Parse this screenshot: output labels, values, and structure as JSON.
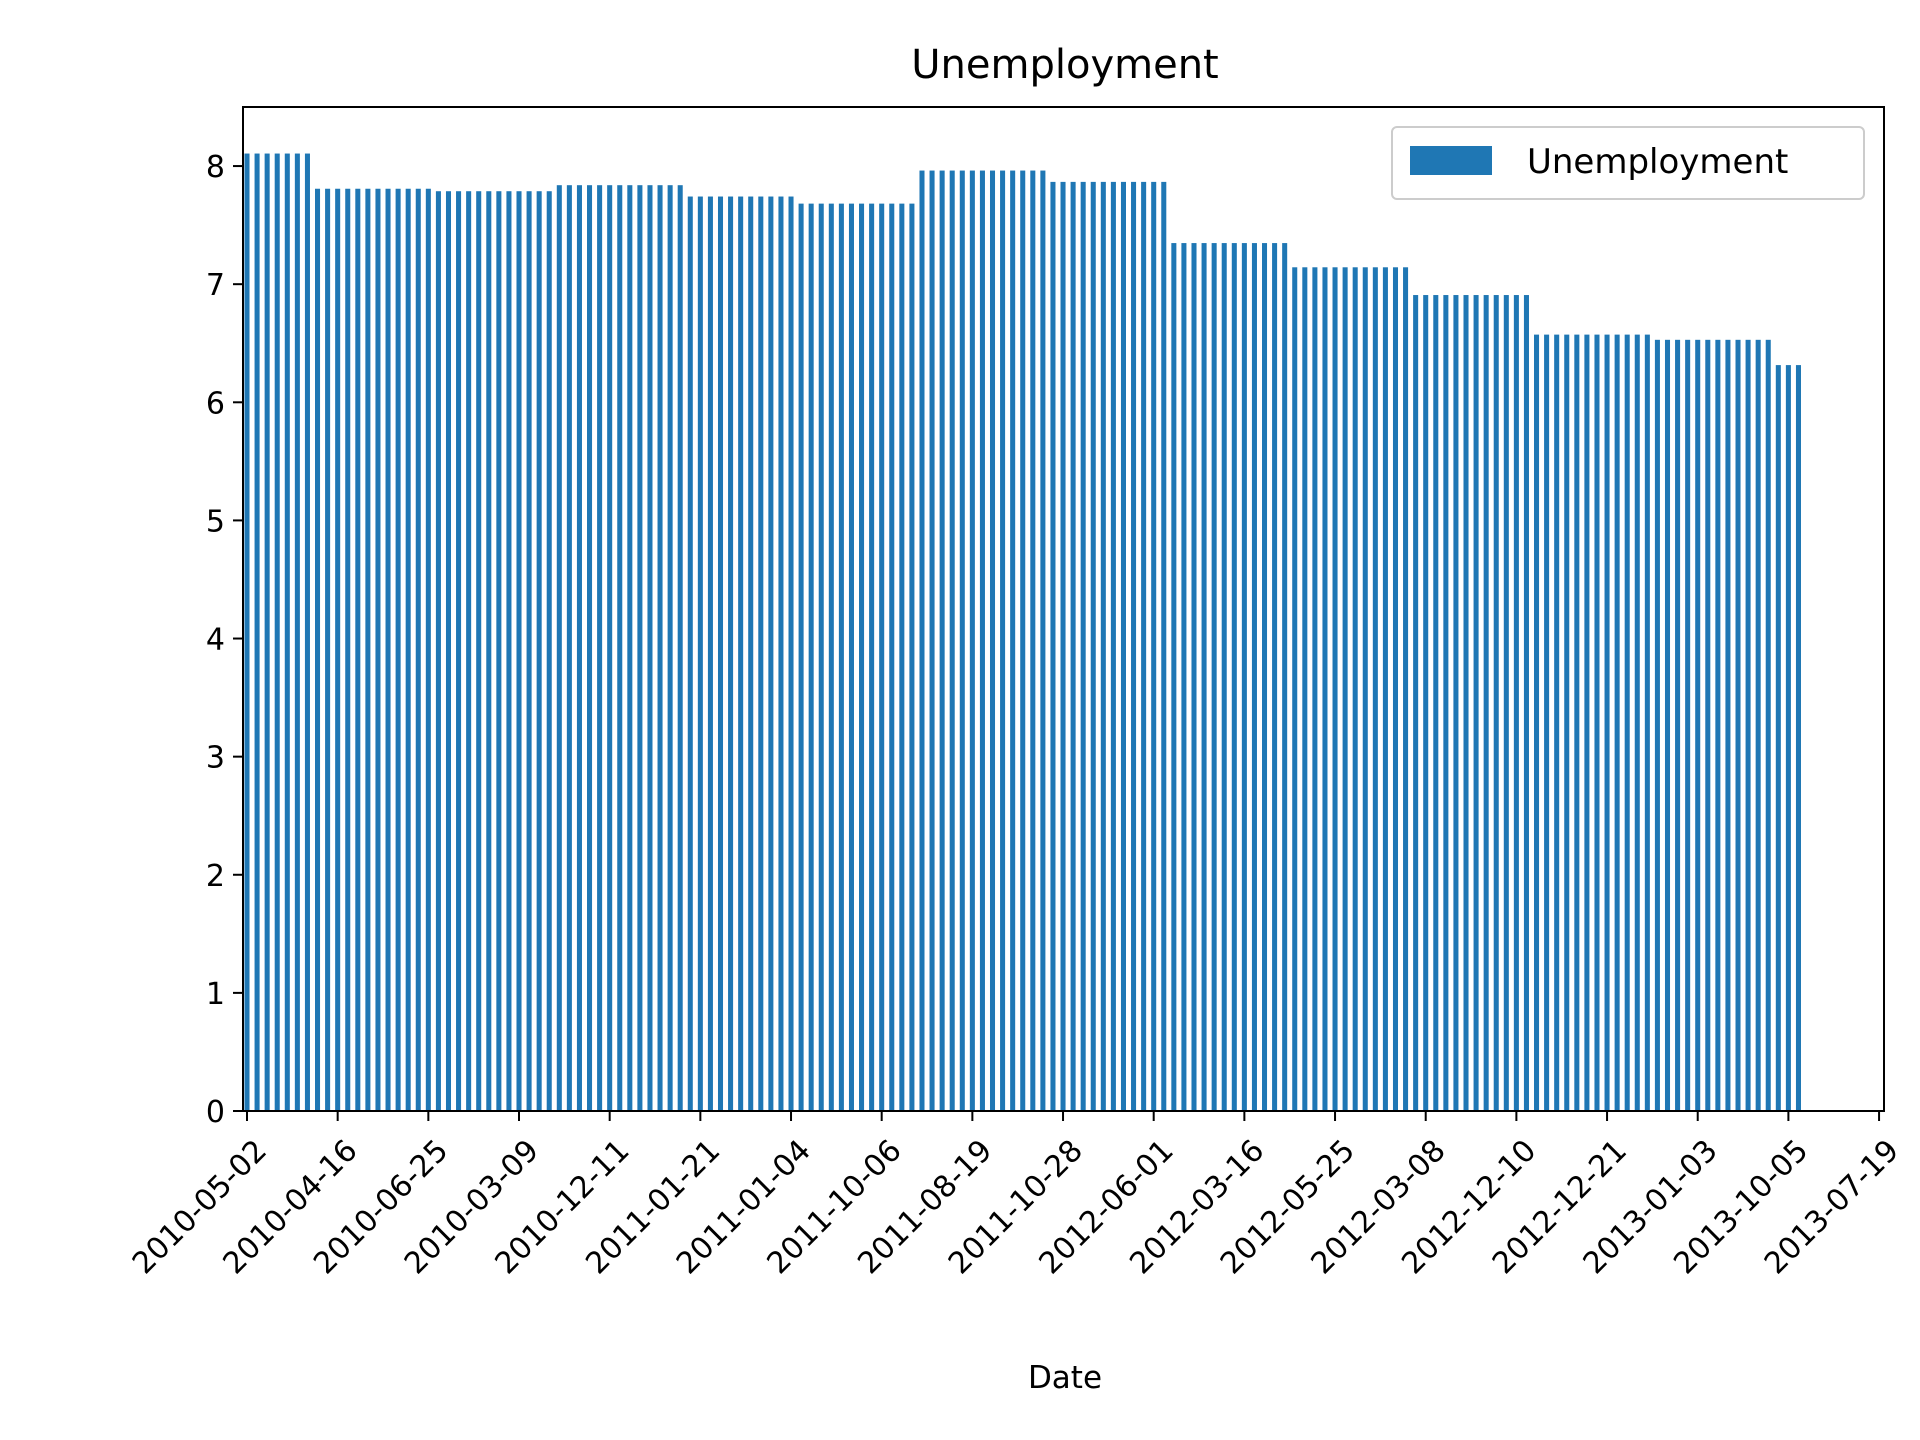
{
  "chart_data": {
    "type": "bar",
    "title": "Unemployment",
    "xlabel": "Date",
    "ylabel": "",
    "ylim": [
      0,
      8.5
    ],
    "yticks": [
      0,
      1,
      2,
      3,
      4,
      5,
      6,
      7,
      8
    ],
    "grid": false,
    "legend": {
      "placement": "top-right",
      "entries": [
        "Unemployment"
      ]
    },
    "xtick_labels": [
      "2010-05-02",
      "2010-04-16",
      "2010-06-25",
      "2010-03-09",
      "2010-12-11",
      "2011-01-21",
      "2011-01-04",
      "2011-10-06",
      "2011-08-19",
      "2011-10-28",
      "2012-06-01",
      "2012-03-16",
      "2012-05-25",
      "2012-03-08",
      "2012-12-10",
      "2012-12-21",
      "2013-01-03",
      "2013-10-05",
      "2013-07-19"
    ],
    "colors": {
      "bar": "#1f77b4"
    },
    "series": [
      {
        "name": "Unemployment",
        "groups": [
          {
            "value": 8.106,
            "count": 7
          },
          {
            "value": 7.808,
            "count": 12
          },
          {
            "value": 7.787,
            "count": 12
          },
          {
            "value": 7.838,
            "count": 13
          },
          {
            "value": 7.742,
            "count": 11
          },
          {
            "value": 7.682,
            "count": 12
          },
          {
            "value": 7.962,
            "count": 13
          },
          {
            "value": 7.866,
            "count": 12
          },
          {
            "value": 7.348,
            "count": 12
          },
          {
            "value": 7.143,
            "count": 12
          },
          {
            "value": 6.908,
            "count": 12
          },
          {
            "value": 6.573,
            "count": 12
          },
          {
            "value": 6.529,
            "count": 12
          },
          {
            "value": 6.315,
            "count": 3
          }
        ]
      }
    ]
  }
}
